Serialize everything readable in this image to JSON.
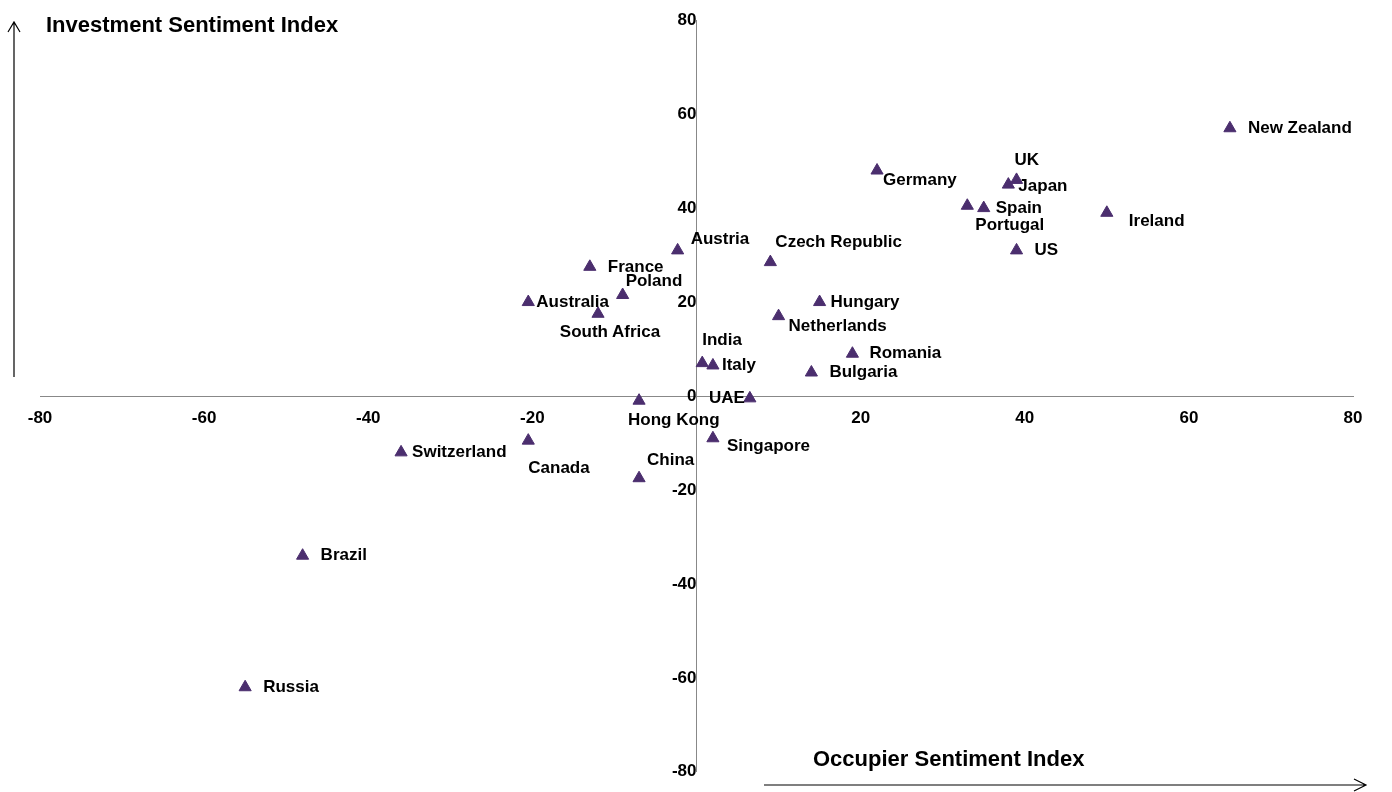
{
  "chart_data": {
    "type": "scatter",
    "xlabel": "Occupier Sentiment Index",
    "ylabel": "Investment Sentiment Index",
    "marker": "triangle",
    "grid": false,
    "legend": false,
    "xlim": [
      -80,
      80
    ],
    "xticks": [
      -80,
      -60,
      -40,
      -20,
      {
        "value": 0,
        "label": null
      },
      20,
      40,
      60,
      80
    ],
    "ylim": [
      -80,
      80
    ],
    "yticks": [
      -80,
      -60,
      -40,
      -20,
      0,
      20,
      40,
      60,
      80
    ],
    "series": [
      {
        "name": "New Zealand",
        "color": "#4b2e6e",
        "x": [
          65
        ],
        "values": [
          57
        ]
      },
      {
        "name": "Germany",
        "color": "#4b2e6e",
        "x": [
          22
        ],
        "values": [
          48
        ]
      },
      {
        "name": "UK",
        "color": "#4b2e6e",
        "x": [
          39
        ],
        "values": [
          46
        ]
      },
      {
        "name": "Japan",
        "color": "#4b2e6e",
        "x": [
          38
        ],
        "values": [
          45
        ]
      },
      {
        "name": "Spain",
        "color": "#4b2e6e",
        "x": [
          35
        ],
        "values": [
          40
        ]
      },
      {
        "name": "Portugal",
        "color": "#4b2e6e",
        "x": [
          33
        ],
        "values": [
          40.5
        ]
      },
      {
        "name": "Ireland",
        "color": "#4b2e6e",
        "x": [
          50
        ],
        "values": [
          39
        ]
      },
      {
        "name": "US",
        "color": "#4b2e6e",
        "x": [
          39
        ],
        "values": [
          31
        ]
      },
      {
        "name": "Austria",
        "color": "#4b2e6e",
        "x": [
          -2.3
        ],
        "values": [
          31
        ]
      },
      {
        "name": "Czech Republic",
        "color": "#4b2e6e",
        "x": [
          9
        ],
        "values": [
          28.5
        ]
      },
      {
        "name": "France",
        "color": "#4b2e6e",
        "x": [
          -13
        ],
        "values": [
          27.5
        ]
      },
      {
        "name": "Poland",
        "color": "#4b2e6e",
        "x": [
          -9
        ],
        "values": [
          21.5
        ]
      },
      {
        "name": "Australia",
        "color": "#4b2e6e",
        "x": [
          -20.5
        ],
        "values": [
          20
        ]
      },
      {
        "name": "Hungary",
        "color": "#4b2e6e",
        "x": [
          15
        ],
        "values": [
          20
        ]
      },
      {
        "name": "South Africa",
        "color": "#4b2e6e",
        "x": [
          -12
        ],
        "values": [
          17.5
        ]
      },
      {
        "name": "Netherlands",
        "color": "#4b2e6e",
        "x": [
          10
        ],
        "values": [
          17
        ]
      },
      {
        "name": "Romania",
        "color": "#4b2e6e",
        "x": [
          19
        ],
        "values": [
          9
        ]
      },
      {
        "name": "India",
        "color": "#4b2e6e",
        "x": [
          0.7
        ],
        "values": [
          7
        ]
      },
      {
        "name": "Italy",
        "color": "#4b2e6e",
        "x": [
          2
        ],
        "values": [
          6.5
        ]
      },
      {
        "name": "Bulgaria",
        "color": "#4b2e6e",
        "x": [
          14
        ],
        "values": [
          5
        ]
      },
      {
        "name": "UAE",
        "color": "#4b2e6e",
        "x": [
          6.5
        ],
        "values": [
          -0.5
        ]
      },
      {
        "name": "Hong Kong",
        "color": "#4b2e6e",
        "x": [
          -7
        ],
        "values": [
          -1
        ]
      },
      {
        "name": "Singapore",
        "color": "#4b2e6e",
        "x": [
          2
        ],
        "values": [
          -9
        ]
      },
      {
        "name": "Canada",
        "color": "#4b2e6e",
        "x": [
          -20.5
        ],
        "values": [
          -9.5
        ]
      },
      {
        "name": "Switzerland",
        "color": "#4b2e6e",
        "x": [
          -36
        ],
        "values": [
          -12
        ]
      },
      {
        "name": "China",
        "color": "#4b2e6e",
        "x": [
          -7
        ],
        "values": [
          -17.5
        ]
      },
      {
        "name": "Brazil",
        "color": "#4b2e6e",
        "x": [
          -48
        ],
        "values": [
          -34
        ]
      },
      {
        "name": "Russia",
        "color": "#4b2e6e",
        "x": [
          -55
        ],
        "values": [
          -62
        ]
      }
    ]
  }
}
